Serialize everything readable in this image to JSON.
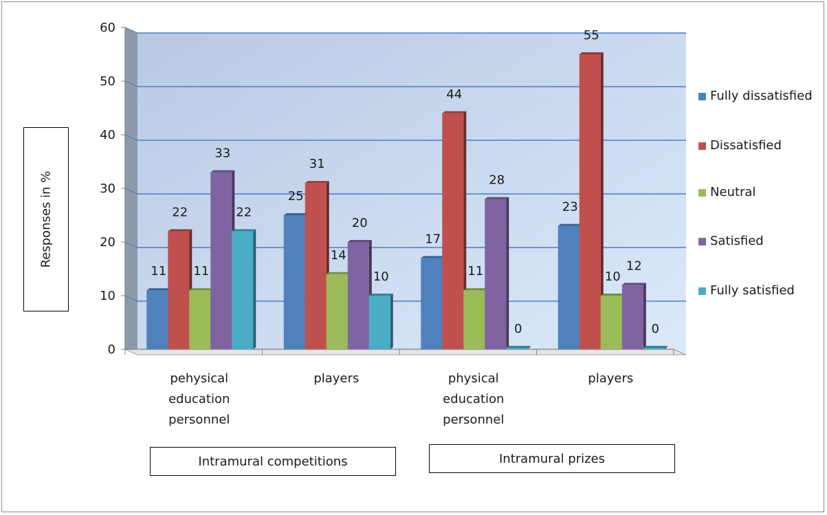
{
  "chart_data": {
    "type": "bar",
    "ylabel": "Responses in %",
    "ylim": [
      0,
      60
    ],
    "yticks": [
      0,
      10,
      20,
      30,
      40,
      50,
      60
    ],
    "grid": true,
    "legend_position": "right",
    "categories": [
      "pehysical education personnel",
      "players",
      "physical education personnel",
      "players"
    ],
    "groups": [
      {
        "label": "Intramural competitions",
        "categories": [
          0,
          1
        ]
      },
      {
        "label": "Intramural prizes",
        "categories": [
          2,
          3
        ]
      }
    ],
    "series": [
      {
        "name": "Fully dissatisfied",
        "color": "#4F81BD",
        "values": [
          11,
          25,
          17,
          23
        ]
      },
      {
        "name": "Dissatisfied",
        "color": "#C0504D",
        "values": [
          22,
          31,
          44,
          55
        ]
      },
      {
        "name": "Neutral",
        "color": "#9BBB59",
        "values": [
          11,
          14,
          11,
          10
        ]
      },
      {
        "name": "Satisfied",
        "color": "#8064A2",
        "values": [
          33,
          20,
          28,
          12
        ]
      },
      {
        "name": "Fully satisfied",
        "color": "#4BACC6",
        "values": [
          22,
          10,
          0,
          0
        ]
      }
    ]
  }
}
